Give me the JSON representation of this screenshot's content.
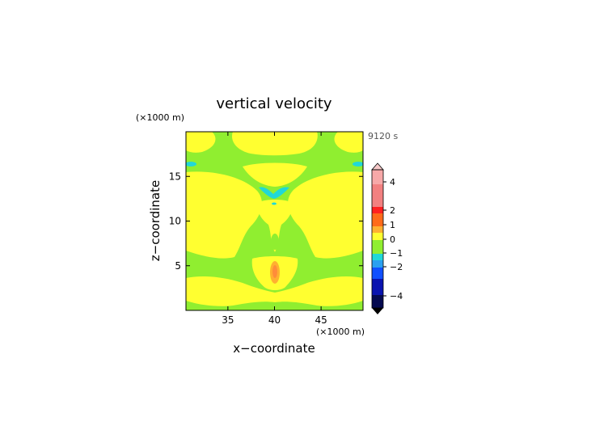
{
  "chart_data": {
    "type": "heatmap",
    "title": "vertical velocity",
    "time_label": "9120 s",
    "xlabel": "x−coordinate",
    "ylabel": "z−coordinate",
    "x_unit": "(×1000 m)",
    "y_unit": "(×1000 m)",
    "xlim": [
      30.5,
      49.5
    ],
    "ylim": [
      0,
      20
    ],
    "x_ticks": [
      35,
      40,
      45
    ],
    "y_ticks": [
      5,
      10,
      15
    ],
    "colorbar": {
      "ticks": [
        "4",
        "2",
        "1",
        "0",
        "−1",
        "−2",
        "−4"
      ],
      "extend": "both",
      "colors": {
        "top_arrow": "#f6c8c8",
        "pink": "#f7a8a8",
        "light_red": "#f28080",
        "red": "#ff2020",
        "orange_red": "#ff6a1a",
        "orange": "#ffb030",
        "yellow": "#ffff30",
        "green": "#90ee30",
        "cyan": "#20d8d8",
        "sky": "#2aa0f0",
        "blue": "#1050ff",
        "dark_blue": "#0a14b0",
        "navy": "#050a50",
        "bottom_arrow": "#000000"
      }
    },
    "field_colors": {
      "background": "#90ee30",
      "positive_weak": "#ffff30",
      "negative_weak": "#20d8d8",
      "core": "#ffb030",
      "core_inner": "#ff8c3a"
    }
  }
}
